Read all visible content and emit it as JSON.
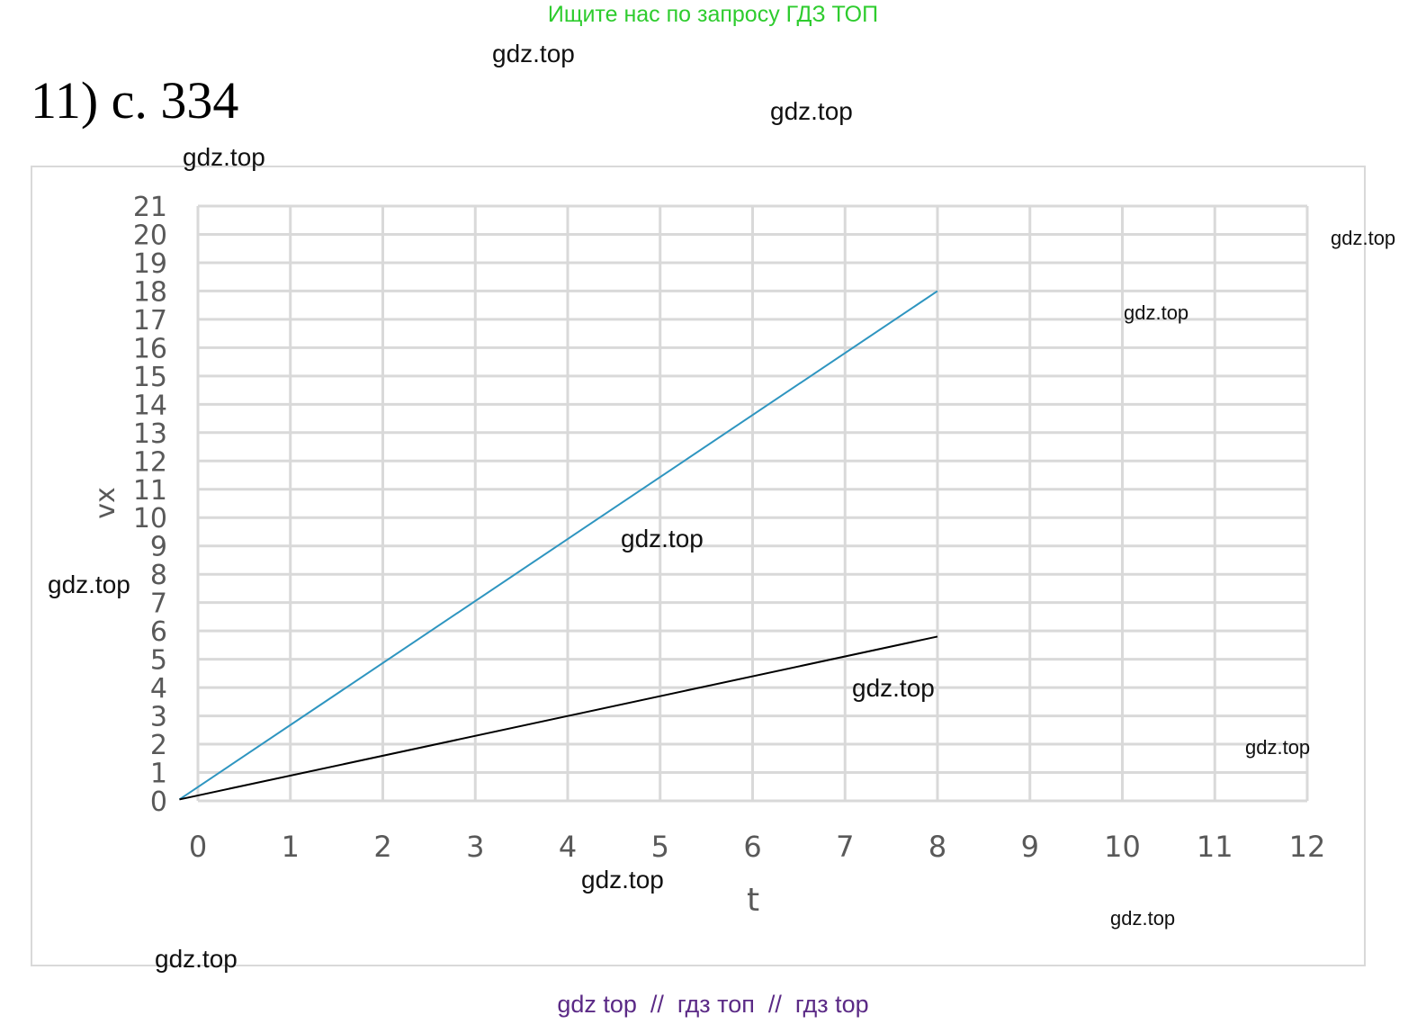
{
  "header": {
    "search_hint": "Ищите нас по запросу ГДЗ ТОП"
  },
  "task": {
    "label": "11) с. 334"
  },
  "watermarks": [
    "gdz.top",
    "gdz.top",
    "gdz.top",
    "gdz.top",
    "gdz.top",
    "gdz.top",
    "gdz.top",
    "gdz.top",
    "gdz.top",
    "gdz.top",
    "gdz.top",
    "gdz.top"
  ],
  "footer": {
    "text": "gdz top  //  гдз топ  //  гдз top"
  },
  "colors": {
    "series_1": "#2e95c0",
    "series_2": "#000000",
    "grid": "#d9d9d9",
    "axis_text": "#595959"
  },
  "chart_data": {
    "type": "line",
    "title": "",
    "xlabel": "t",
    "ylabel": "vx",
    "xlim": [
      0,
      12
    ],
    "ylim": [
      0,
      21
    ],
    "x_ticks": [
      "0",
      "1",
      "2",
      "3",
      "4",
      "5",
      "6",
      "7",
      "8",
      "9",
      "10",
      "11",
      "12"
    ],
    "y_ticks": [
      "0",
      "1",
      "2",
      "3",
      "4",
      "5",
      "6",
      "7",
      "8",
      "9",
      "10",
      "11",
      "12",
      "13",
      "14",
      "15",
      "16",
      "17",
      "18",
      "19",
      "20",
      "21"
    ],
    "grid": true,
    "legend": "none",
    "series": [
      {
        "points": [
          [
            -0.2,
            0.05
          ],
          [
            8,
            18
          ]
        ]
      },
      {
        "points": [
          [
            -0.2,
            0.05
          ],
          [
            8,
            5.8
          ]
        ]
      }
    ]
  }
}
